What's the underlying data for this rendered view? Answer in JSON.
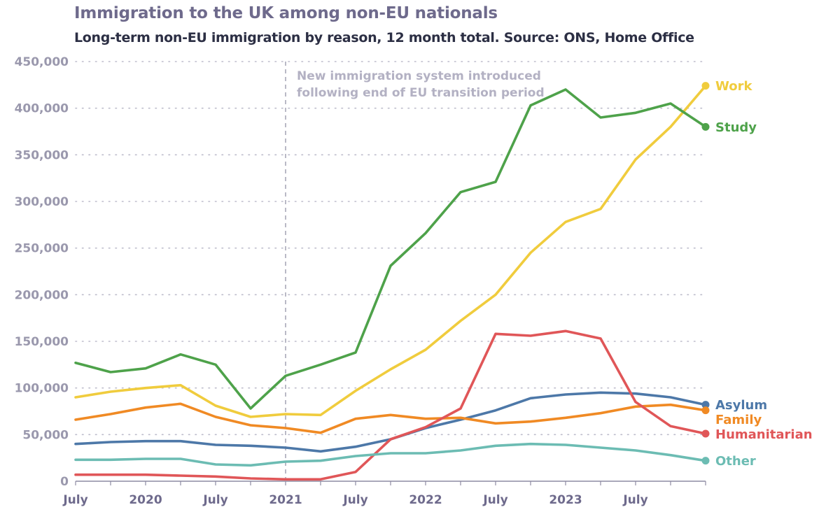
{
  "header": {
    "title": "Immigration to the UK among non-EU nationals",
    "subtitle": "Long-term non-EU immigration by reason, 12 month total. Source: ONS, Home Office"
  },
  "chart_data": {
    "type": "line",
    "title": "Immigration to the UK among non-EU nationals",
    "subtitle": "Long-term non-EU immigration by reason, 12 month total. Source: ONS, Home Office",
    "xlabel": "",
    "ylabel": "",
    "ylim": [
      0,
      450000
    ],
    "yticks": [
      0,
      50000,
      100000,
      150000,
      200000,
      250000,
      300000,
      350000,
      400000,
      450000
    ],
    "ytick_labels": [
      "0",
      "50,000",
      "100,000",
      "150,000",
      "200,000",
      "250,000",
      "300,000",
      "350,000",
      "400,000",
      "450,000"
    ],
    "x": [
      "2019-06",
      "2019-09",
      "2019-12",
      "2020-03",
      "2020-06",
      "2020-09",
      "2020-12",
      "2021-03",
      "2021-06",
      "2021-09",
      "2021-12",
      "2022-03",
      "2022-06",
      "2022-09",
      "2022-12",
      "2023-03",
      "2023-06",
      "2023-09",
      "2023-12"
    ],
    "xtick_labels": [
      "July",
      "2020",
      "July",
      "2021",
      "July",
      "2022",
      "July",
      "2023",
      "July"
    ],
    "xtick_positions": [
      "2019-06",
      "2019-12",
      "2020-06",
      "2020-12",
      "2021-06",
      "2021-12",
      "2022-06",
      "2022-12",
      "2023-06"
    ],
    "grid": true,
    "legend": "end-of-line labels (right)",
    "annotation": {
      "at": "2020-12",
      "lines": [
        "New immigration system introduced",
        "following end of EU transition period"
      ]
    },
    "series": [
      {
        "name": "Work",
        "color": "#f0cc3d",
        "values": [
          90000,
          96000,
          100000,
          103000,
          81000,
          69000,
          72000,
          71000,
          97000,
          120000,
          141000,
          172000,
          200000,
          245000,
          278000,
          292000,
          345000,
          380000,
          424000
        ]
      },
      {
        "name": "Study",
        "color": "#4ea24a",
        "values": [
          127000,
          117000,
          121000,
          136000,
          125000,
          78000,
          113000,
          125000,
          138000,
          231000,
          266000,
          310000,
          321000,
          403000,
          420000,
          390000,
          395000,
          405000,
          380000
        ]
      },
      {
        "name": "Asylum",
        "color": "#4d78a8",
        "values": [
          40000,
          42000,
          43000,
          43000,
          39000,
          38000,
          36000,
          32000,
          37000,
          45000,
          57000,
          66000,
          76000,
          89000,
          93000,
          95000,
          94000,
          90000,
          82000
        ]
      },
      {
        "name": "Family",
        "color": "#f08a24",
        "values": [
          66000,
          72000,
          79000,
          83000,
          69000,
          60000,
          57000,
          52000,
          67000,
          71000,
          67000,
          68000,
          62000,
          64000,
          68000,
          73000,
          80000,
          82000,
          76000
        ]
      },
      {
        "name": "Humanitarian",
        "color": "#e05658",
        "values": [
          7000,
          7000,
          7000,
          6000,
          5000,
          3000,
          2000,
          2000,
          10000,
          45000,
          58000,
          78000,
          158000,
          156000,
          161000,
          153000,
          85000,
          59000,
          51000
        ]
      },
      {
        "name": "Other",
        "color": "#6cbcb3",
        "values": [
          23000,
          23000,
          24000,
          24000,
          18000,
          17000,
          21000,
          22000,
          27000,
          30000,
          30000,
          33000,
          38000,
          40000,
          39000,
          36000,
          33000,
          28000,
          22000
        ]
      }
    ]
  }
}
